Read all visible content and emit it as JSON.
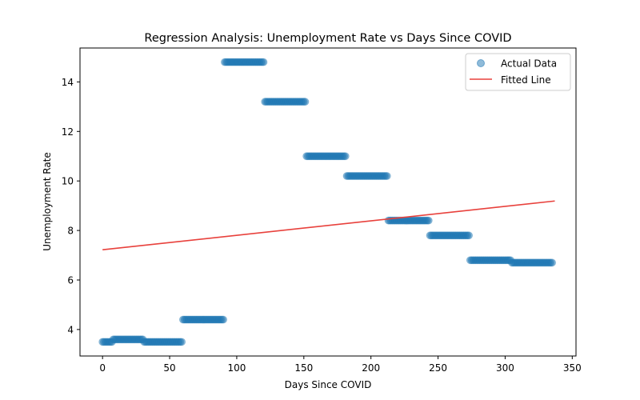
{
  "chart_data": {
    "type": "scatter",
    "title": "Regression Analysis: Unemployment Rate vs Days Since COVID",
    "xlabel": "Days Since COVID",
    "ylabel": "Unemployment Rate",
    "xlim": [
      -16.8,
      352.8
    ],
    "ylim": [
      2.93,
      15.37
    ],
    "xticks": [
      0,
      50,
      100,
      150,
      200,
      250,
      300,
      350
    ],
    "yticks": [
      4,
      6,
      8,
      10,
      12,
      14
    ],
    "grid": false,
    "legend_position": "top-right",
    "scatter_color": "#1f77b4",
    "line_color": "#e8413c",
    "series": [
      {
        "name": "Actual Data",
        "kind": "scatter",
        "segments": [
          {
            "x_start": 0,
            "x_end": 4,
            "y": 3.5
          },
          {
            "x_start": 5,
            "x_end": 7,
            "y": 3.5
          },
          {
            "x_start": 8,
            "x_end": 30,
            "y": 3.6
          },
          {
            "x_start": 31,
            "x_end": 59,
            "y": 3.5
          },
          {
            "x_start": 60,
            "x_end": 90,
            "y": 4.4
          },
          {
            "x_start": 91,
            "x_end": 120,
            "y": 14.8
          },
          {
            "x_start": 121,
            "x_end": 151,
            "y": 13.2
          },
          {
            "x_start": 152,
            "x_end": 181,
            "y": 11.0
          },
          {
            "x_start": 182,
            "x_end": 212,
            "y": 10.2
          },
          {
            "x_start": 213,
            "x_end": 243,
            "y": 8.4
          },
          {
            "x_start": 244,
            "x_end": 273,
            "y": 7.8
          },
          {
            "x_start": 274,
            "x_end": 304,
            "y": 6.8
          },
          {
            "x_start": 305,
            "x_end": 335,
            "y": 6.7
          }
        ]
      },
      {
        "name": "Fitted Line",
        "kind": "line",
        "x": [
          0,
          337
        ],
        "y": [
          7.22,
          9.19
        ]
      }
    ]
  }
}
